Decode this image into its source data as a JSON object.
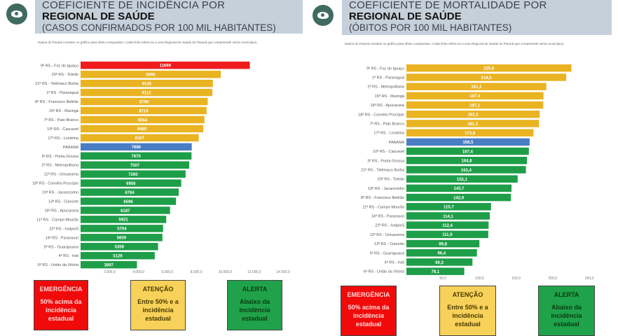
{
  "colors": {
    "emergencia": "#ee1c1c",
    "atencao": "#e9b322",
    "parana": "#4a7ec4",
    "alerta": "#1e9e48"
  },
  "chart_data": [
    {
      "type": "bar",
      "orientation": "horizontal",
      "title": "COEFICIENTE DE INCIDÊNCIA POR",
      "title_bold": "REGIONAL DE SAÚDE",
      "subtitle": "(CASOS CONFIRMADOS POR 100 MIL HABITANTES)",
      "note": "Dados do Paraná constam no gráfico para efeito comparativo. Cada linha refere-se a uma Regional de Saúde do Paraná que compreende vários municípios.",
      "xlim": [
        0,
        14000
      ],
      "tick_labels": [
        "-",
        "2.000,0",
        "4.000,0",
        "6.000,0",
        "8.000,0",
        "10.000,0",
        "12.000,0",
        "14.000,0"
      ],
      "categories": [
        "9ª RS - Foz do Iguaçu",
        "20ª RS - Toledo",
        "21ª RS - Telêmaco Borba",
        "1ª RS - Paranaguá",
        "8ª RS - Francisco Beltrão",
        "15ª RS - Maringá",
        "7ª RS - Pato Branco",
        "10ª RS - Cascavel",
        "17ª RS - Londrina",
        "PARANÁ",
        "3ª RS - Ponta Grossa",
        "2ª RS - Metropolitana",
        "12ª RS - Umuarama",
        "18ª RS - Cornélio Procópio",
        "19ª RS - Jacarezinho",
        "13ª RS - Cianorte",
        "16ª RS - Apucarana",
        "11ª RS - Campo Mourão",
        "22ª RS - Ivaiporã",
        "14ª RS - Paranavaí",
        "5ª RS - Guarapuava",
        "4ª RS - Irati",
        "6ª RS - União da Vitória"
      ],
      "values": [
        11699,
        9695,
        9146,
        9112,
        8790,
        8710,
        8564,
        8480,
        8167,
        7686,
        7670,
        7507,
        7260,
        6956,
        6784,
        6596,
        6187,
        5921,
        5704,
        5659,
        5359,
        5129,
        3897
      ],
      "labels": [
        "11699",
        "9695",
        "9146",
        "9112",
        "8790",
        "8710",
        "8564",
        "8480",
        "8167",
        "7686",
        "7670",
        "7507",
        "7260",
        "6956",
        "6784",
        "6596",
        "6187",
        "5921",
        "5704",
        "5659",
        "5359",
        "5129",
        "3897"
      ],
      "status": [
        "emergencia",
        "atencao",
        "atencao",
        "atencao",
        "atencao",
        "atencao",
        "atencao",
        "atencao",
        "atencao",
        "parana",
        "alerta",
        "alerta",
        "alerta",
        "alerta",
        "alerta",
        "alerta",
        "alerta",
        "alerta",
        "alerta",
        "alerta",
        "alerta",
        "alerta",
        "alerta"
      ],
      "grid": false
    },
    {
      "type": "bar",
      "orientation": "horizontal",
      "title": "COEFICIENTE DE MORTALIDADE POR",
      "title_bold": "REGIONAL DE SAÚDE",
      "subtitle": "(ÓBITOS POR 100 MIL HABITANTES)",
      "note": "Dados do Paraná constam no gráfico para efeito comparativo. Cada linha refere-se a uma Regional de Saúde do Paraná que compreende vários municípios.",
      "xlim": [
        0,
        250
      ],
      "tick_labels": [
        "-",
        "50,0",
        "100,0",
        "150,0",
        "200,0",
        "250,0"
      ],
      "categories": [
        "9ª RS - Foz do Iguaçu",
        "1ª RS - Paranaguá",
        "2ª RS - Metropolitana",
        "15ª RS - Maringá",
        "16ª RS - Apucarana",
        "18ª RS - Cornélio Procópio",
        "7ª RS - Pato Branco",
        "17ª RS - Londrina",
        "PARANÁ",
        "10ª RS - Cascavel",
        "3ª RS - Ponta Grossa",
        "21ª RS - Telêmaco Borba",
        "20ª RS - Toledo",
        "19ª RS - Jacarezinho",
        "8ª RS - Francisco Beltrão",
        "11ª RS - Campo Mourão",
        "14ª RS - Paranavaí",
        "22ª RS - Ivaiporã",
        "12ª RS - Umuarama",
        "13ª RS - Cianorte",
        "5ª RS - Guarapuava",
        "4ª RS - Irati",
        "6ª RS - União da Vitória"
      ],
      "values": [
        225.6,
        218.5,
        191.3,
        187.4,
        187.1,
        182.2,
        181.3,
        173.8,
        168.5,
        167.4,
        164.8,
        163.4,
        152.1,
        143.7,
        142.9,
        115.7,
        114.1,
        112.4,
        111.9,
        99.8,
        96.4,
        90.3,
        79.1
      ],
      "labels": [
        "225,6",
        "218,5",
        "191,3",
        "187,4",
        "187,1",
        "182,2",
        "181,3",
        "173,8",
        "168,5",
        "167,4",
        "164,8",
        "163,4",
        "152,1",
        "143,7",
        "142,9",
        "115,7",
        "114,1",
        "112,4",
        "111,9",
        "99,8",
        "96,4",
        "90,3",
        "79,1"
      ],
      "status": [
        "atencao",
        "atencao",
        "atencao",
        "atencao",
        "atencao",
        "atencao",
        "atencao",
        "atencao",
        "parana",
        "alerta",
        "alerta",
        "alerta",
        "alerta",
        "alerta",
        "alerta",
        "alerta",
        "alerta",
        "alerta",
        "alerta",
        "alerta",
        "alerta",
        "alerta",
        "alerta"
      ],
      "grid": false
    }
  ],
  "legend": [
    {
      "title": "EMERGÊNCIA",
      "text": "50% acima da incidência estadual"
    },
    {
      "title": "ATENÇÃO",
      "text": "Entre 50% e a incidência estadual"
    },
    {
      "title": "ALERTA",
      "text": "Abaixo da incidência estadual"
    }
  ]
}
